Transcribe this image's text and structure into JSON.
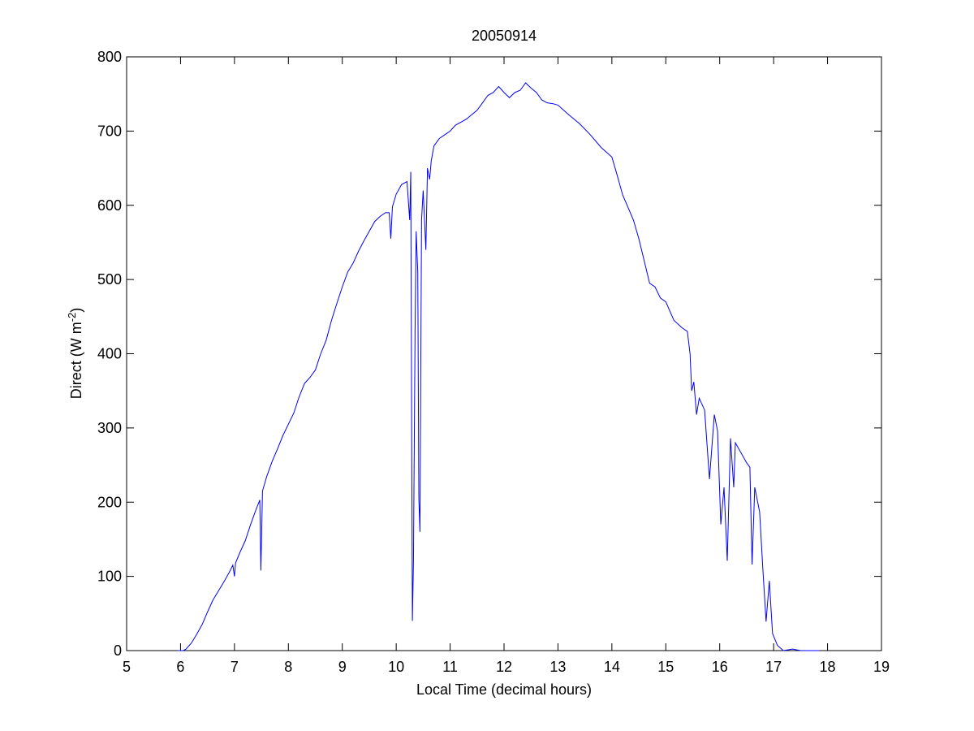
{
  "chart_data": {
    "type": "line",
    "title": "20050914",
    "xlabel": "Local Time (decimal hours)",
    "ylabel": {
      "text": "Direct (W m",
      "superscript": "-2",
      "suffix": ")"
    },
    "xlim": [
      5,
      19
    ],
    "xticks": [
      5,
      6,
      7,
      8,
      9,
      10,
      11,
      12,
      13,
      14,
      15,
      16,
      17,
      18,
      19
    ],
    "ylim": [
      0,
      800
    ],
    "yticks": [
      0,
      100,
      200,
      300,
      400,
      500,
      600,
      700,
      800
    ],
    "grid": false,
    "series": [
      {
        "color": "#0000ff",
        "x": [
          5.95,
          6.0,
          6.05,
          6.1,
          6.2,
          6.3,
          6.4,
          6.5,
          6.6,
          6.7,
          6.8,
          6.9,
          6.97,
          7.0,
          7.02,
          7.1,
          7.2,
          7.3,
          7.4,
          7.47,
          7.49,
          7.52,
          7.6,
          7.7,
          7.8,
          7.9,
          8.0,
          8.1,
          8.2,
          8.3,
          8.4,
          8.5,
          8.6,
          8.7,
          8.8,
          8.9,
          9.0,
          9.1,
          9.2,
          9.3,
          9.4,
          9.5,
          9.6,
          9.7,
          9.8,
          9.87,
          9.9,
          9.93,
          10.0,
          10.1,
          10.2,
          10.25,
          10.27,
          10.3,
          10.32,
          10.35,
          10.37,
          10.4,
          10.42,
          10.44,
          10.47,
          10.5,
          10.55,
          10.58,
          10.62,
          10.65,
          10.7,
          10.8,
          10.9,
          11.0,
          11.1,
          11.2,
          11.3,
          11.4,
          11.5,
          11.6,
          11.7,
          11.8,
          11.9,
          12.0,
          12.1,
          12.2,
          12.3,
          12.4,
          12.5,
          12.6,
          12.7,
          12.8,
          12.9,
          13.0,
          13.2,
          13.4,
          13.6,
          13.8,
          14.0,
          14.1,
          14.2,
          14.3,
          14.4,
          14.5,
          14.6,
          14.7,
          14.8,
          14.9,
          15.0,
          15.15,
          15.3,
          15.4,
          15.45,
          15.48,
          15.52,
          15.57,
          15.62,
          15.72,
          15.81,
          15.9,
          15.96,
          16.02,
          16.08,
          16.14,
          16.2,
          16.26,
          16.29,
          16.5,
          16.56,
          16.6,
          16.65,
          16.74,
          16.8,
          16.86,
          16.92,
          16.98,
          17.07,
          17.18,
          17.35,
          17.5,
          17.85
        ],
        "values": [
          0,
          0,
          0,
          2,
          10,
          22,
          35,
          52,
          68,
          80,
          92,
          105,
          115,
          100,
          118,
          132,
          148,
          170,
          190,
          203,
          108,
          215,
          235,
          255,
          272,
          290,
          305,
          320,
          342,
          360,
          368,
          378,
          400,
          418,
          445,
          468,
          490,
          510,
          522,
          538,
          552,
          565,
          578,
          585,
          590,
          590,
          555,
          598,
          615,
          628,
          632,
          580,
          645,
          40,
          120,
          430,
          565,
          510,
          205,
          160,
          580,
          620,
          540,
          650,
          635,
          660,
          680,
          690,
          695,
          700,
          708,
          712,
          716,
          722,
          728,
          738,
          748,
          752,
          760,
          752,
          745,
          752,
          755,
          765,
          758,
          752,
          742,
          738,
          737,
          735,
          722,
          710,
          695,
          678,
          665,
          640,
          614,
          597,
          580,
          555,
          525,
          495,
          490,
          475,
          470,
          445,
          435,
          430,
          400,
          350,
          362,
          318,
          340,
          324,
          231,
          318,
          296,
          170,
          220,
          121,
          286,
          220,
          280,
          253,
          247,
          116,
          220,
          187,
          110,
          39,
          94,
          23,
          7,
          0,
          2,
          0,
          0
        ]
      }
    ]
  }
}
